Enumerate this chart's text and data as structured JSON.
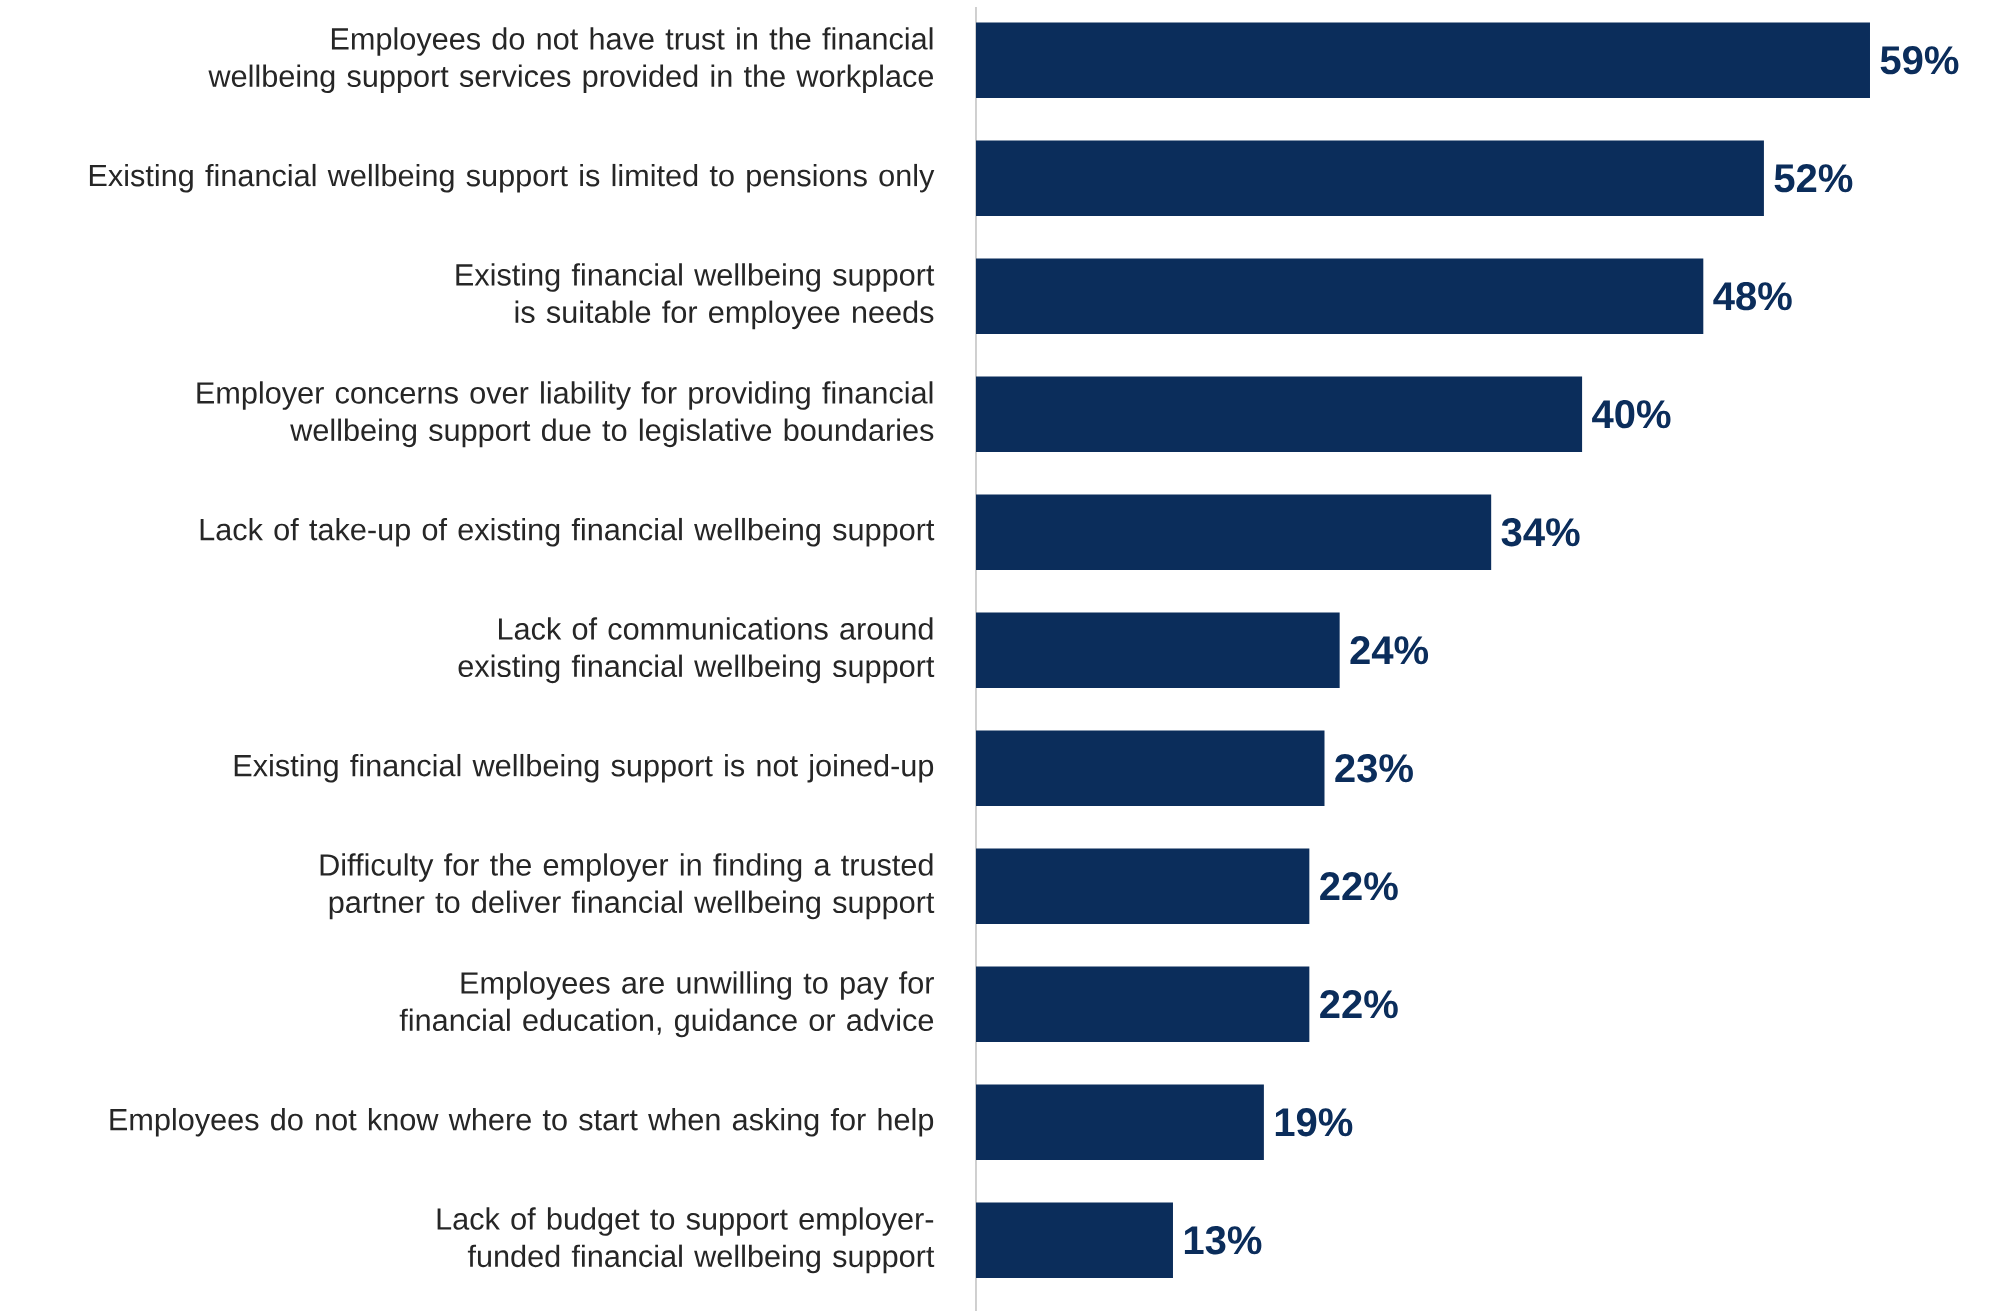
{
  "chart_data": {
    "type": "bar",
    "orientation": "horizontal",
    "categories": [
      "Employees do not have trust in the financial wellbeing support services provided in the workplace",
      "Existing financial wellbeing support is limited to pensions only",
      "Existing financial wellbeing support is suitable for employee needs",
      "Employer concerns over liability for providing financial wellbeing support due to legislative boundaries",
      "Lack of take-up of existing financial wellbeing support",
      "Lack of communications around existing financial wellbeing support",
      "Existing financial wellbeing support is not joined-up",
      "Difficulty for the employer in finding a trusted partner to deliver financial wellbeing support",
      "Employees are unwilling to pay for financial education, guidance or advice",
      "Employees do not know where to start when asking for help",
      "Lack of budget to support employer-funded financial wellbeing support"
    ],
    "values": [
      59,
      52,
      48,
      40,
      34,
      24,
      23,
      22,
      22,
      19,
      13
    ],
    "value_labels": [
      "59%",
      "52%",
      "48%",
      "40%",
      "34%",
      "24%",
      "23%",
      "22%",
      "22%",
      "19%",
      "13%"
    ],
    "color": "#0b2d5b"
  }
}
